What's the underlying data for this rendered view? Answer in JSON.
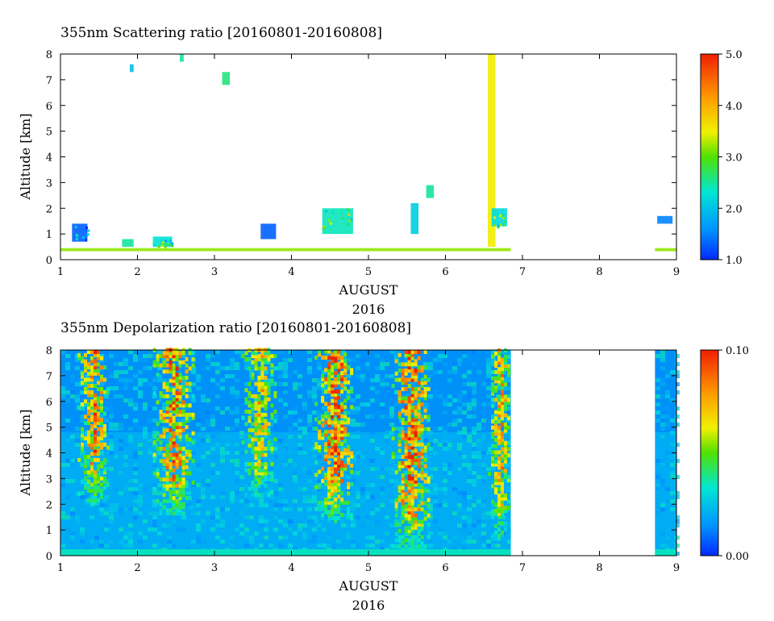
{
  "chart_data": [
    {
      "type": "heatmap",
      "title": "355nm Scattering ratio [20160801-20160808]",
      "xlabel": "AUGUST",
      "xlabel2": "2016",
      "ylabel": "Altitude [km]",
      "xlim": [
        1,
        9
      ],
      "ylim": [
        0,
        8
      ],
      "x_ticks": [
        "1",
        "2",
        "3",
        "4",
        "5",
        "6",
        "7",
        "8",
        "9"
      ],
      "y_ticks": [
        "0",
        "1",
        "2",
        "3",
        "4",
        "5",
        "6",
        "7",
        "8"
      ],
      "colorbar": {
        "range": [
          1.0,
          5.0
        ],
        "tick_labels": [
          "1.0",
          "2.0",
          "3.0",
          "4.0",
          "5.0"
        ]
      },
      "data_gaps_days": [
        [
          6.85,
          8.72
        ]
      ],
      "features": [
        {
          "x0": 1.0,
          "x1": 6.85,
          "y0": 0.33,
          "y1": 0.45,
          "value": 3.2
        },
        {
          "x0": 8.72,
          "x1": 9.0,
          "y0": 0.33,
          "y1": 0.45,
          "value": 3.2
        },
        {
          "x0": 1.15,
          "x1": 1.35,
          "y0": 0.7,
          "y1": 1.4,
          "value": 1.3
        },
        {
          "x0": 1.8,
          "x1": 1.95,
          "y0": 0.5,
          "y1": 0.8,
          "value": 2.5
        },
        {
          "x0": 2.2,
          "x1": 2.45,
          "y0": 0.5,
          "y1": 0.9,
          "value": 2.3
        },
        {
          "x0": 3.6,
          "x1": 3.8,
          "y0": 0.8,
          "y1": 1.4,
          "value": 1.3
        },
        {
          "x0": 1.9,
          "x1": 1.95,
          "y0": 7.3,
          "y1": 7.6,
          "value": 2.0
        },
        {
          "x0": 2.55,
          "x1": 2.6,
          "y0": 7.7,
          "y1": 8.0,
          "value": 2.5
        },
        {
          "x0": 3.1,
          "x1": 3.2,
          "y0": 6.8,
          "y1": 7.3,
          "value": 2.6
        },
        {
          "x0": 4.4,
          "x1": 4.8,
          "y0": 1.0,
          "y1": 2.0,
          "value": 2.4
        },
        {
          "x0": 5.55,
          "x1": 5.65,
          "y0": 1.0,
          "y1": 2.2,
          "value": 2.1
        },
        {
          "x0": 5.75,
          "x1": 5.85,
          "y0": 2.4,
          "y1": 2.9,
          "value": 2.5
        },
        {
          "x0": 6.55,
          "x1": 6.65,
          "y0": 0.5,
          "y1": 8.0,
          "value": 3.5
        },
        {
          "x0": 6.6,
          "x1": 6.8,
          "y0": 1.3,
          "y1": 2.0,
          "value": 2.2
        },
        {
          "x0": 8.75,
          "x1": 8.95,
          "y0": 1.4,
          "y1": 1.7,
          "value": 1.5
        }
      ]
    },
    {
      "type": "heatmap",
      "title": "355nm Depolarization ratio [20160801-20160808]",
      "xlabel": "AUGUST",
      "xlabel2": "2016",
      "ylabel": "Altitude [km]",
      "xlim": [
        1,
        9
      ],
      "ylim": [
        0,
        8
      ],
      "x_ticks": [
        "1",
        "2",
        "3",
        "4",
        "5",
        "6",
        "7",
        "8",
        "9"
      ],
      "y_ticks": [
        "0",
        "1",
        "2",
        "3",
        "4",
        "5",
        "6",
        "7",
        "8"
      ],
      "colorbar": {
        "range": [
          0.0,
          0.1
        ],
        "tick_labels": [
          "0.00",
          "0.10"
        ]
      },
      "data_gaps_days": [
        [
          6.85,
          8.72
        ]
      ],
      "background_value": 0.02,
      "surface_layer": {
        "y0": 0.0,
        "y1": 0.25,
        "value": 0.035
      },
      "high_depol_bands": [
        {
          "x0": 1.22,
          "x1": 1.62,
          "y_bottom": 2.0,
          "value": 0.09
        },
        {
          "x0": 2.2,
          "x1": 2.72,
          "y_bottom": 1.6,
          "value": 0.095
        },
        {
          "x0": 3.35,
          "x1": 3.8,
          "y_bottom": 2.2,
          "value": 0.075
        },
        {
          "x0": 4.3,
          "x1": 4.8,
          "y_bottom": 1.3,
          "value": 0.1
        },
        {
          "x0": 5.3,
          "x1": 5.8,
          "y_bottom": 0.2,
          "value": 0.1
        },
        {
          "x0": 6.55,
          "x1": 6.85,
          "y_bottom": 0.5,
          "value": 0.08
        }
      ]
    }
  ]
}
